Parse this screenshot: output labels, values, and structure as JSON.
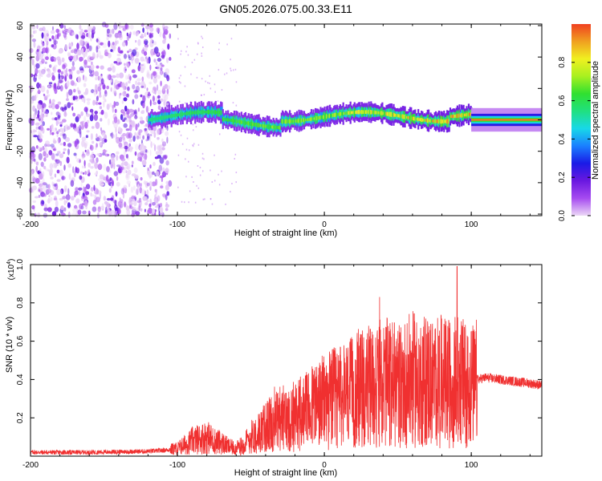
{
  "title": "GN05.2026.075.00.33.E11",
  "colors": {
    "snr_line": "#f03030",
    "frame": "#000000",
    "background": "#ffffff"
  },
  "chart_data": [
    {
      "type": "heatmap",
      "name": "spectrogram",
      "title": "GN05.2026.075.00.33.E11",
      "xlabel": "Height of straight line (km)",
      "ylabel": "Frequency (Hz)",
      "xlim": [
        -200,
        148
      ],
      "ylim": [
        -61,
        61
      ],
      "x_ticks": [
        -200,
        -100,
        0,
        100
      ],
      "x_tick_labels": [
        "-200",
        "-100",
        "0",
        "100"
      ],
      "y_ticks": [
        -60,
        -40,
        -20,
        0,
        20,
        40,
        60
      ],
      "y_tick_labels": [
        "-60",
        "-40",
        "-20",
        "0",
        "20",
        "40",
        "60"
      ],
      "colorbar": {
        "label": "Normalized spectral amplitude",
        "range": [
          0,
          1
        ],
        "ticks": [
          0,
          0.2,
          0.4,
          0.6,
          0.8
        ],
        "tick_labels": [
          "0.0",
          "0.2",
          "0.4",
          "0.6",
          "0.8"
        ],
        "colormap": [
          "#ecd8f6",
          "#a64bf0",
          "#6a18e0",
          "#1a1ae6",
          "#1a80ff",
          "#18d8e8",
          "#20e080",
          "#30e030",
          "#a8f020",
          "#f0f020",
          "#f0a020",
          "#f04020"
        ]
      },
      "regions": [
        {
          "description": "scattered noise",
          "x_range": [
            -200,
            -105
          ],
          "y_range": [
            -61,
            61
          ],
          "amplitude": 0.1
        },
        {
          "description": "signal band",
          "x_range": [
            -120,
            100
          ],
          "freq_center": 2,
          "freq_halfwidth": 6,
          "amplitude_peak": 0.9
        },
        {
          "description": "sharp band",
          "x_range": [
            100,
            148
          ],
          "freq_center": 0,
          "freq_halfwidth": 3,
          "amplitude_peak": 1.0
        }
      ]
    },
    {
      "type": "line",
      "name": "snr",
      "xlabel": "Height of straight line (km)",
      "ylabel": "SNR (10 * v/v)",
      "y_multiplier_label": "(x10",
      "y_multiplier_exponent": "4",
      "y_multiplier_close": ")",
      "xlim": [
        -200,
        148
      ],
      "ylim": [
        0,
        1.0
      ],
      "x_ticks": [
        -200,
        -100,
        0,
        100
      ],
      "x_tick_labels": [
        "-200",
        "-100",
        "0",
        "100"
      ],
      "y_ticks": [
        0.2,
        0.4,
        0.6,
        0.8,
        1.0
      ],
      "y_tick_labels": [
        "0.2",
        "0.4",
        "0.6",
        "0.8",
        "1.0"
      ],
      "series": [
        {
          "name": "SNR",
          "x": [
            -200,
            -160,
            -120,
            -110,
            -100,
            -90,
            -85,
            -80,
            -75,
            -70,
            -65,
            -60,
            -55,
            -50,
            -45,
            -40,
            -35,
            -30,
            -25,
            -20,
            -15,
            -10,
            -5,
            0,
            5,
            10,
            15,
            20,
            25,
            30,
            35,
            40,
            45,
            50,
            55,
            60,
            65,
            70,
            75,
            80,
            85,
            90,
            95,
            100,
            103,
            104,
            110,
            120,
            130,
            140,
            148
          ],
          "y": [
            0.02,
            0.02,
            0.025,
            0.03,
            0.04,
            0.08,
            0.09,
            0.1,
            0.08,
            0.07,
            0.05,
            0.04,
            0.06,
            0.1,
            0.12,
            0.15,
            0.18,
            0.2,
            0.19,
            0.22,
            0.22,
            0.25,
            0.27,
            0.28,
            0.3,
            0.3,
            0.32,
            0.33,
            0.35,
            0.36,
            0.37,
            0.38,
            0.38,
            0.37,
            0.38,
            0.4,
            0.39,
            0.4,
            0.38,
            0.39,
            0.38,
            0.4,
            0.38,
            0.37,
            0.36,
            0.4,
            0.41,
            0.4,
            0.39,
            0.38,
            0.37
          ]
        }
      ]
    }
  ]
}
